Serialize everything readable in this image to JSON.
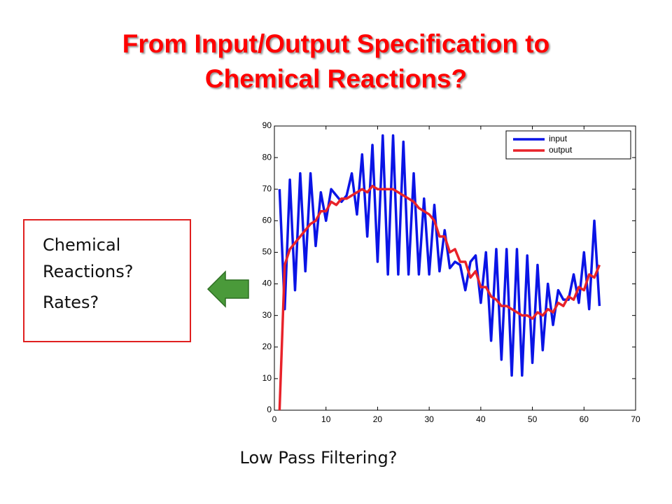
{
  "slide_title": [
    "From Input/Output Specification to",
    "Chemical Reactions?"
  ],
  "box_items": [
    "Chemical Reactions?",
    "Rates?"
  ],
  "caption": "Low Pass Filtering?",
  "chart_data": {
    "type": "line",
    "x": [
      1,
      2,
      3,
      4,
      5,
      6,
      7,
      8,
      9,
      10,
      11,
      12,
      13,
      14,
      15,
      16,
      17,
      18,
      19,
      20,
      21,
      22,
      23,
      24,
      25,
      26,
      27,
      28,
      29,
      30,
      31,
      32,
      33,
      34,
      35,
      36,
      37,
      38,
      39,
      40,
      41,
      42,
      43,
      44,
      45,
      46,
      47,
      48,
      49,
      50,
      51,
      52,
      53,
      54,
      55,
      56,
      57,
      58,
      59,
      60,
      61,
      62,
      63
    ],
    "series": [
      {
        "name": "input",
        "color": "#0a14e6",
        "values": [
          70,
          32,
          73,
          38,
          75,
          44,
          75,
          52,
          69,
          60,
          70,
          68,
          66,
          68,
          75,
          62,
          81,
          55,
          84,
          47,
          87,
          43,
          87,
          43,
          85,
          43,
          75,
          43,
          67,
          43,
          65,
          44,
          57,
          45,
          47,
          46,
          38,
          47,
          49,
          34,
          50,
          22,
          51,
          16,
          51,
          11,
          51,
          11,
          49,
          15,
          46,
          19,
          40,
          27,
          38,
          35,
          35,
          43,
          34,
          50,
          32,
          60,
          33
        ]
      },
      {
        "name": "output",
        "color": "#e8222a",
        "values": [
          0,
          46,
          51,
          53,
          55,
          57,
          59,
          60,
          63,
          63,
          66,
          65,
          67,
          67,
          68,
          69,
          70,
          69,
          71,
          70,
          70,
          70,
          70,
          69,
          68,
          67,
          66,
          64,
          63,
          62,
          60,
          55,
          55,
          50,
          51,
          47,
          47,
          42,
          44,
          39,
          39,
          36,
          35,
          33,
          33,
          32,
          31,
          30,
          30,
          29,
          31,
          30,
          32,
          31,
          34,
          33,
          36,
          35,
          39,
          38,
          43,
          42,
          46
        ]
      }
    ],
    "xlim": [
      0,
      70
    ],
    "xticks": [
      0,
      10,
      20,
      30,
      40,
      50,
      60,
      70
    ],
    "ylim": [
      0,
      90
    ],
    "yticks": [
      0,
      10,
      20,
      30,
      40,
      50,
      60,
      70,
      80,
      90
    ],
    "legend": "upper right"
  }
}
